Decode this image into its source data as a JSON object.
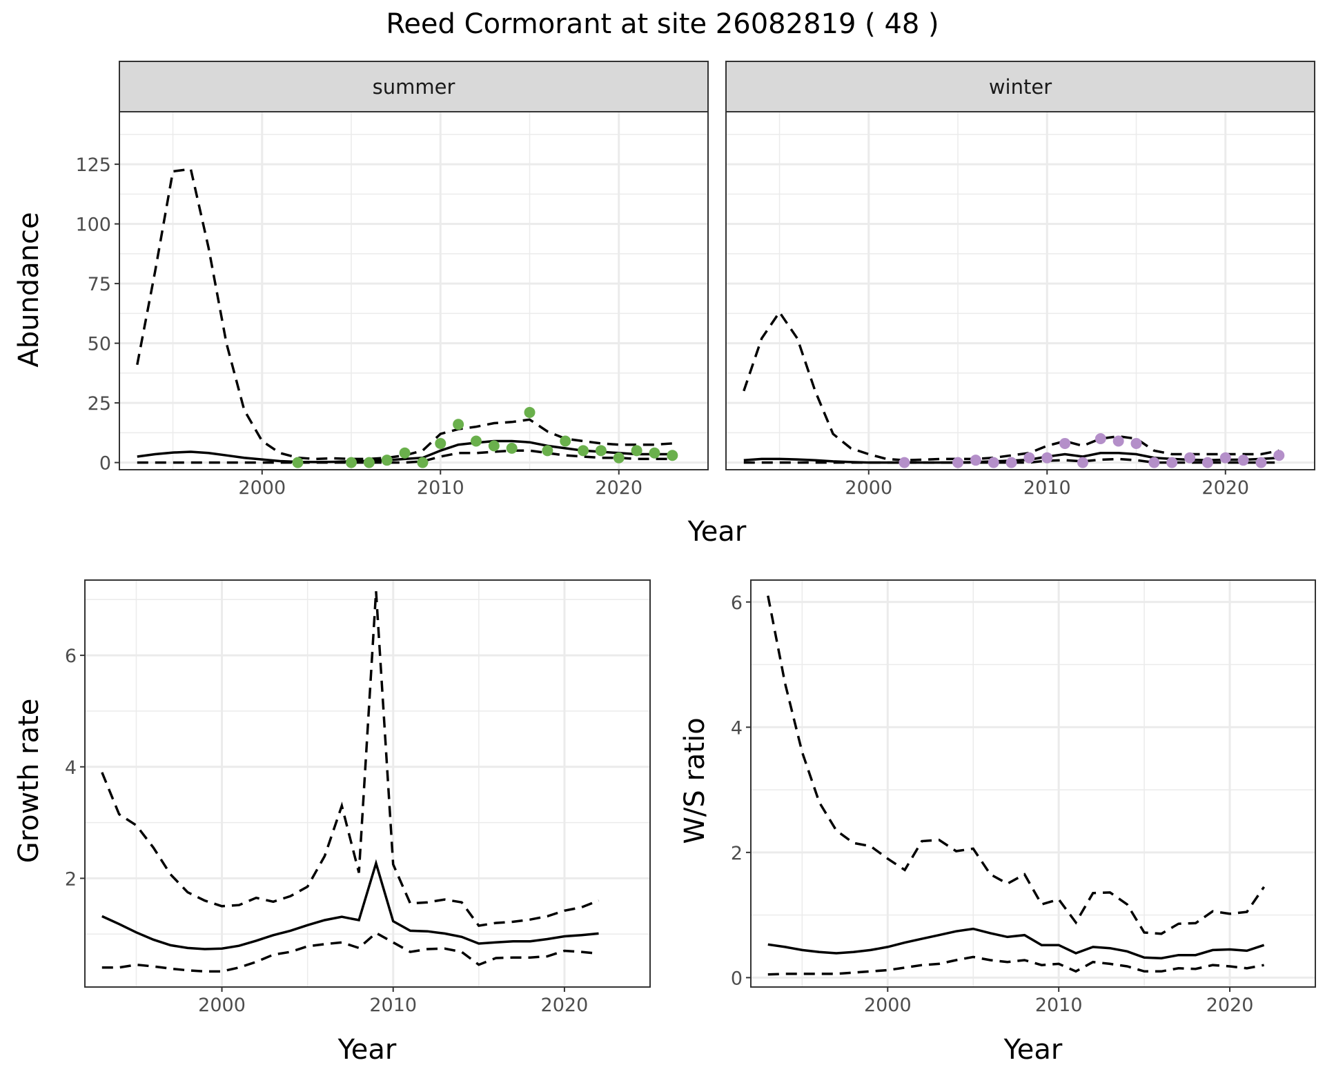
{
  "title": "Reed Cormorant at site 26082819 ( 48 )",
  "colors": {
    "summer_points": "#6ab04c",
    "winter_points": "#b48fc9",
    "strip_fill": "#d9d9d9"
  },
  "chart_data": [
    {
      "id": "abundance",
      "type": "line",
      "facets": [
        "summer",
        "winter"
      ],
      "xlabel": "Year",
      "ylabel": "Abundance",
      "xlim": [
        1992,
        2025
      ],
      "ylim": [
        -3,
        147
      ],
      "x_ticks": [
        2000,
        2010,
        2020
      ],
      "y_ticks": [
        0,
        25,
        50,
        75,
        100,
        125
      ],
      "grid": true,
      "years": [
        1993,
        1994,
        1995,
        1996,
        1997,
        1998,
        1999,
        2000,
        2001,
        2002,
        2003,
        2004,
        2005,
        2006,
        2007,
        2008,
        2009,
        2010,
        2011,
        2012,
        2013,
        2014,
        2015,
        2016,
        2017,
        2018,
        2019,
        2020,
        2021,
        2022,
        2023
      ],
      "summer": {
        "estimate": [
          2.5,
          3.5,
          4.2,
          4.5,
          4,
          3,
          2,
          1.3,
          0.6,
          0.3,
          0.2,
          0.3,
          0.5,
          0.7,
          1,
          1.5,
          2,
          5,
          7.5,
          8.3,
          9,
          9,
          8.5,
          7,
          6,
          5,
          4.5,
          4,
          3.5,
          3.5,
          3.5
        ],
        "upper": [
          41,
          80,
          122,
          123,
          90,
          50,
          22,
          9,
          4,
          2,
          1.5,
          1.8,
          1.5,
          1.5,
          2,
          3,
          5,
          12,
          14,
          15,
          16.5,
          17,
          18,
          13,
          10,
          9,
          8,
          7.5,
          7.5,
          7.5,
          8
        ],
        "lower": [
          0,
          0,
          0,
          0,
          0,
          0,
          0,
          0,
          0,
          0,
          0,
          0,
          0,
          0,
          0,
          0,
          0.5,
          2.5,
          4,
          4,
          4.5,
          5,
          5,
          4,
          3,
          2.5,
          2,
          2,
          1.5,
          1.5,
          1.5
        ],
        "obs_years": [
          2002,
          2005,
          2006,
          2007,
          2008,
          2009,
          2010,
          2011,
          2012,
          2013,
          2014,
          2015,
          2016,
          2017,
          2018,
          2019,
          2020,
          2021,
          2022,
          2023
        ],
        "obs_values": [
          0,
          0,
          0,
          1,
          4,
          0,
          8,
          16,
          9,
          7,
          6,
          21,
          5,
          9,
          5,
          5,
          2,
          5,
          4,
          3
        ]
      },
      "winter": {
        "estimate": [
          1,
          1.5,
          1.5,
          1.3,
          1,
          0.5,
          0.2,
          0,
          0,
          0,
          0,
          0,
          0,
          0.2,
          0.5,
          0.8,
          1.2,
          2.5,
          3.5,
          2.5,
          4,
          4,
          3.5,
          2,
          1.5,
          1.2,
          1,
          1.2,
          1.2,
          1.5,
          2
        ],
        "upper": [
          30,
          52,
          63,
          52,
          30,
          12,
          6,
          3.5,
          1.5,
          1,
          1.2,
          1.5,
          1.5,
          1.5,
          2,
          3,
          4,
          7,
          9,
          7,
          10,
          11,
          10,
          5,
          3.5,
          3.5,
          3.5,
          3.5,
          3.5,
          3.5,
          5
        ],
        "lower": [
          0,
          0,
          0,
          0,
          0,
          0,
          0,
          0,
          0,
          0,
          0,
          0,
          0,
          0,
          0,
          0,
          0,
          0.8,
          1,
          0.5,
          1.2,
          1.5,
          1,
          0,
          0,
          0,
          0,
          0,
          0,
          0,
          0
        ],
        "obs_years": [
          2002,
          2005,
          2006,
          2007,
          2008,
          2009,
          2010,
          2011,
          2012,
          2013,
          2014,
          2015,
          2016,
          2017,
          2018,
          2019,
          2020,
          2021,
          2022,
          2023
        ],
        "obs_values": [
          0,
          0,
          1,
          0,
          0,
          2,
          2,
          8,
          0,
          10,
          9,
          8,
          0,
          0,
          2,
          0,
          2,
          1,
          0,
          3
        ]
      }
    },
    {
      "id": "growth",
      "type": "line",
      "xlabel": "Year",
      "ylabel": "Growth rate",
      "xlim": [
        1992,
        2025
      ],
      "ylim": [
        0.05,
        7.35
      ],
      "x_ticks": [
        2000,
        2010,
        2020
      ],
      "y_ticks": [
        2,
        4,
        6
      ],
      "grid": true,
      "years": [
        1993,
        1994,
        1995,
        1996,
        1997,
        1998,
        1999,
        2000,
        2001,
        2002,
        2003,
        2004,
        2005,
        2006,
        2007,
        2008,
        2009,
        2010,
        2011,
        2012,
        2013,
        2014,
        2015,
        2016,
        2017,
        2018,
        2019,
        2020,
        2021,
        2022
      ],
      "estimate": [
        1.32,
        1.18,
        1.03,
        0.9,
        0.8,
        0.75,
        0.73,
        0.74,
        0.79,
        0.88,
        0.98,
        1.06,
        1.16,
        1.25,
        1.31,
        1.25,
        2.27,
        1.23,
        1.06,
        1.05,
        1.01,
        0.95,
        0.83,
        0.85,
        0.87,
        0.87,
        0.91,
        0.96,
        0.98,
        1.01
      ],
      "upper": [
        3.9,
        3.15,
        2.95,
        2.55,
        2.07,
        1.75,
        1.6,
        1.5,
        1.52,
        1.65,
        1.58,
        1.68,
        1.85,
        2.4,
        3.3,
        2.1,
        7.15,
        2.25,
        1.55,
        1.57,
        1.62,
        1.57,
        1.15,
        1.2,
        1.22,
        1.26,
        1.32,
        1.42,
        1.48,
        1.6
      ],
      "lower": [
        0.4,
        0.4,
        0.45,
        0.42,
        0.38,
        0.35,
        0.33,
        0.33,
        0.4,
        0.5,
        0.63,
        0.68,
        0.78,
        0.82,
        0.85,
        0.75,
        1.02,
        0.85,
        0.68,
        0.73,
        0.74,
        0.68,
        0.45,
        0.57,
        0.58,
        0.58,
        0.6,
        0.7,
        0.68,
        0.65
      ]
    },
    {
      "id": "ws_ratio",
      "type": "line",
      "xlabel": "Year",
      "ylabel": "W/S ratio",
      "xlim": [
        1992,
        2025
      ],
      "ylim": [
        -0.15,
        6.35
      ],
      "x_ticks": [
        2000,
        2010,
        2020
      ],
      "y_ticks": [
        0,
        2,
        4,
        6
      ],
      "grid": true,
      "years": [
        1993,
        1994,
        1995,
        1996,
        1997,
        1998,
        1999,
        2000,
        2001,
        2002,
        2003,
        2004,
        2005,
        2006,
        2007,
        2008,
        2009,
        2010,
        2011,
        2012,
        2013,
        2014,
        2015,
        2016,
        2017,
        2018,
        2019,
        2020,
        2021,
        2022
      ],
      "estimate": [
        0.53,
        0.49,
        0.44,
        0.41,
        0.39,
        0.41,
        0.44,
        0.49,
        0.56,
        0.62,
        0.68,
        0.74,
        0.78,
        0.71,
        0.65,
        0.68,
        0.52,
        0.52,
        0.39,
        0.49,
        0.47,
        0.42,
        0.32,
        0.31,
        0.36,
        0.36,
        0.44,
        0.45,
        0.43,
        0.52
      ],
      "upper": [
        6.1,
        4.7,
        3.6,
        2.8,
        2.35,
        2.15,
        2.1,
        1.9,
        1.72,
        2.18,
        2.2,
        2.02,
        2.06,
        1.65,
        1.5,
        1.65,
        1.17,
        1.25,
        0.88,
        1.35,
        1.36,
        1.17,
        0.72,
        0.7,
        0.86,
        0.87,
        1.06,
        1.02,
        1.05,
        1.45
      ],
      "lower": [
        0.05,
        0.06,
        0.06,
        0.06,
        0.06,
        0.08,
        0.1,
        0.12,
        0.16,
        0.2,
        0.22,
        0.28,
        0.33,
        0.28,
        0.25,
        0.28,
        0.2,
        0.22,
        0.1,
        0.25,
        0.22,
        0.18,
        0.1,
        0.1,
        0.15,
        0.14,
        0.2,
        0.18,
        0.15,
        0.2
      ]
    }
  ]
}
